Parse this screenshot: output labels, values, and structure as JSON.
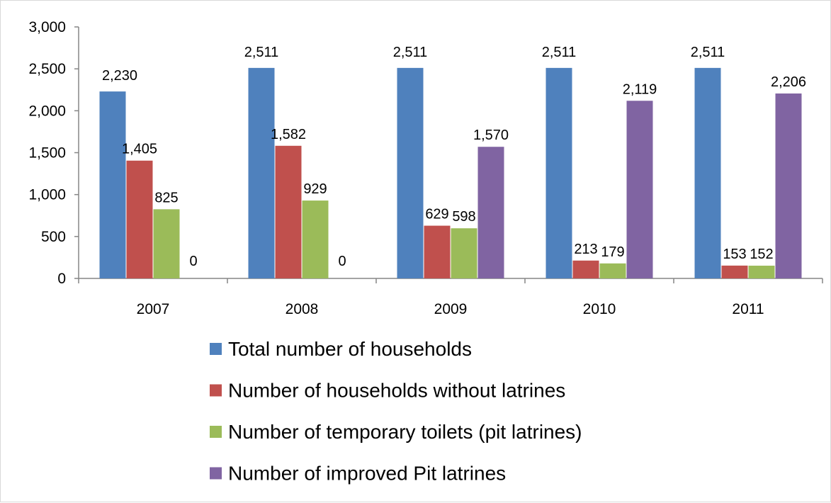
{
  "chart_data": {
    "type": "bar",
    "title": "",
    "xlabel": "",
    "ylabel": "",
    "ylim": [
      0,
      3000
    ],
    "yticks": [
      "0",
      "500",
      "1,000",
      "1,500",
      "2,000",
      "2,500",
      "3,000"
    ],
    "ytick_values": [
      0,
      500,
      1000,
      1500,
      2000,
      2500,
      3000
    ],
    "categories": [
      "2007",
      "2008",
      "2009",
      "2010",
      "2011"
    ],
    "grid": false,
    "legend_position": "bottom",
    "series": [
      {
        "name": "Total number of households",
        "color": "#4f81bd",
        "values": [
          2230,
          2511,
          2511,
          2511,
          2511
        ],
        "labels": [
          "2,230",
          "2,511",
          "2,511",
          "2,511",
          "2,511"
        ]
      },
      {
        "name": "Number  of households without latrines",
        "color": "#c0504d",
        "values": [
          1405,
          1582,
          629,
          213,
          153
        ],
        "labels": [
          "1,405",
          "1,582",
          "629",
          "213",
          "153"
        ]
      },
      {
        "name": "Number of temporary toilets (pit latrines)",
        "color": "#9bbb59",
        "values": [
          825,
          929,
          598,
          179,
          152
        ],
        "labels": [
          "825",
          "929",
          "598",
          "179",
          "152"
        ]
      },
      {
        "name": "Number of improved Pit latrines",
        "color": "#8064a2",
        "values": [
          0,
          0,
          1570,
          2119,
          2206
        ],
        "labels": [
          "0",
          "0",
          "1,570",
          "2,119",
          "2,206"
        ]
      }
    ]
  }
}
